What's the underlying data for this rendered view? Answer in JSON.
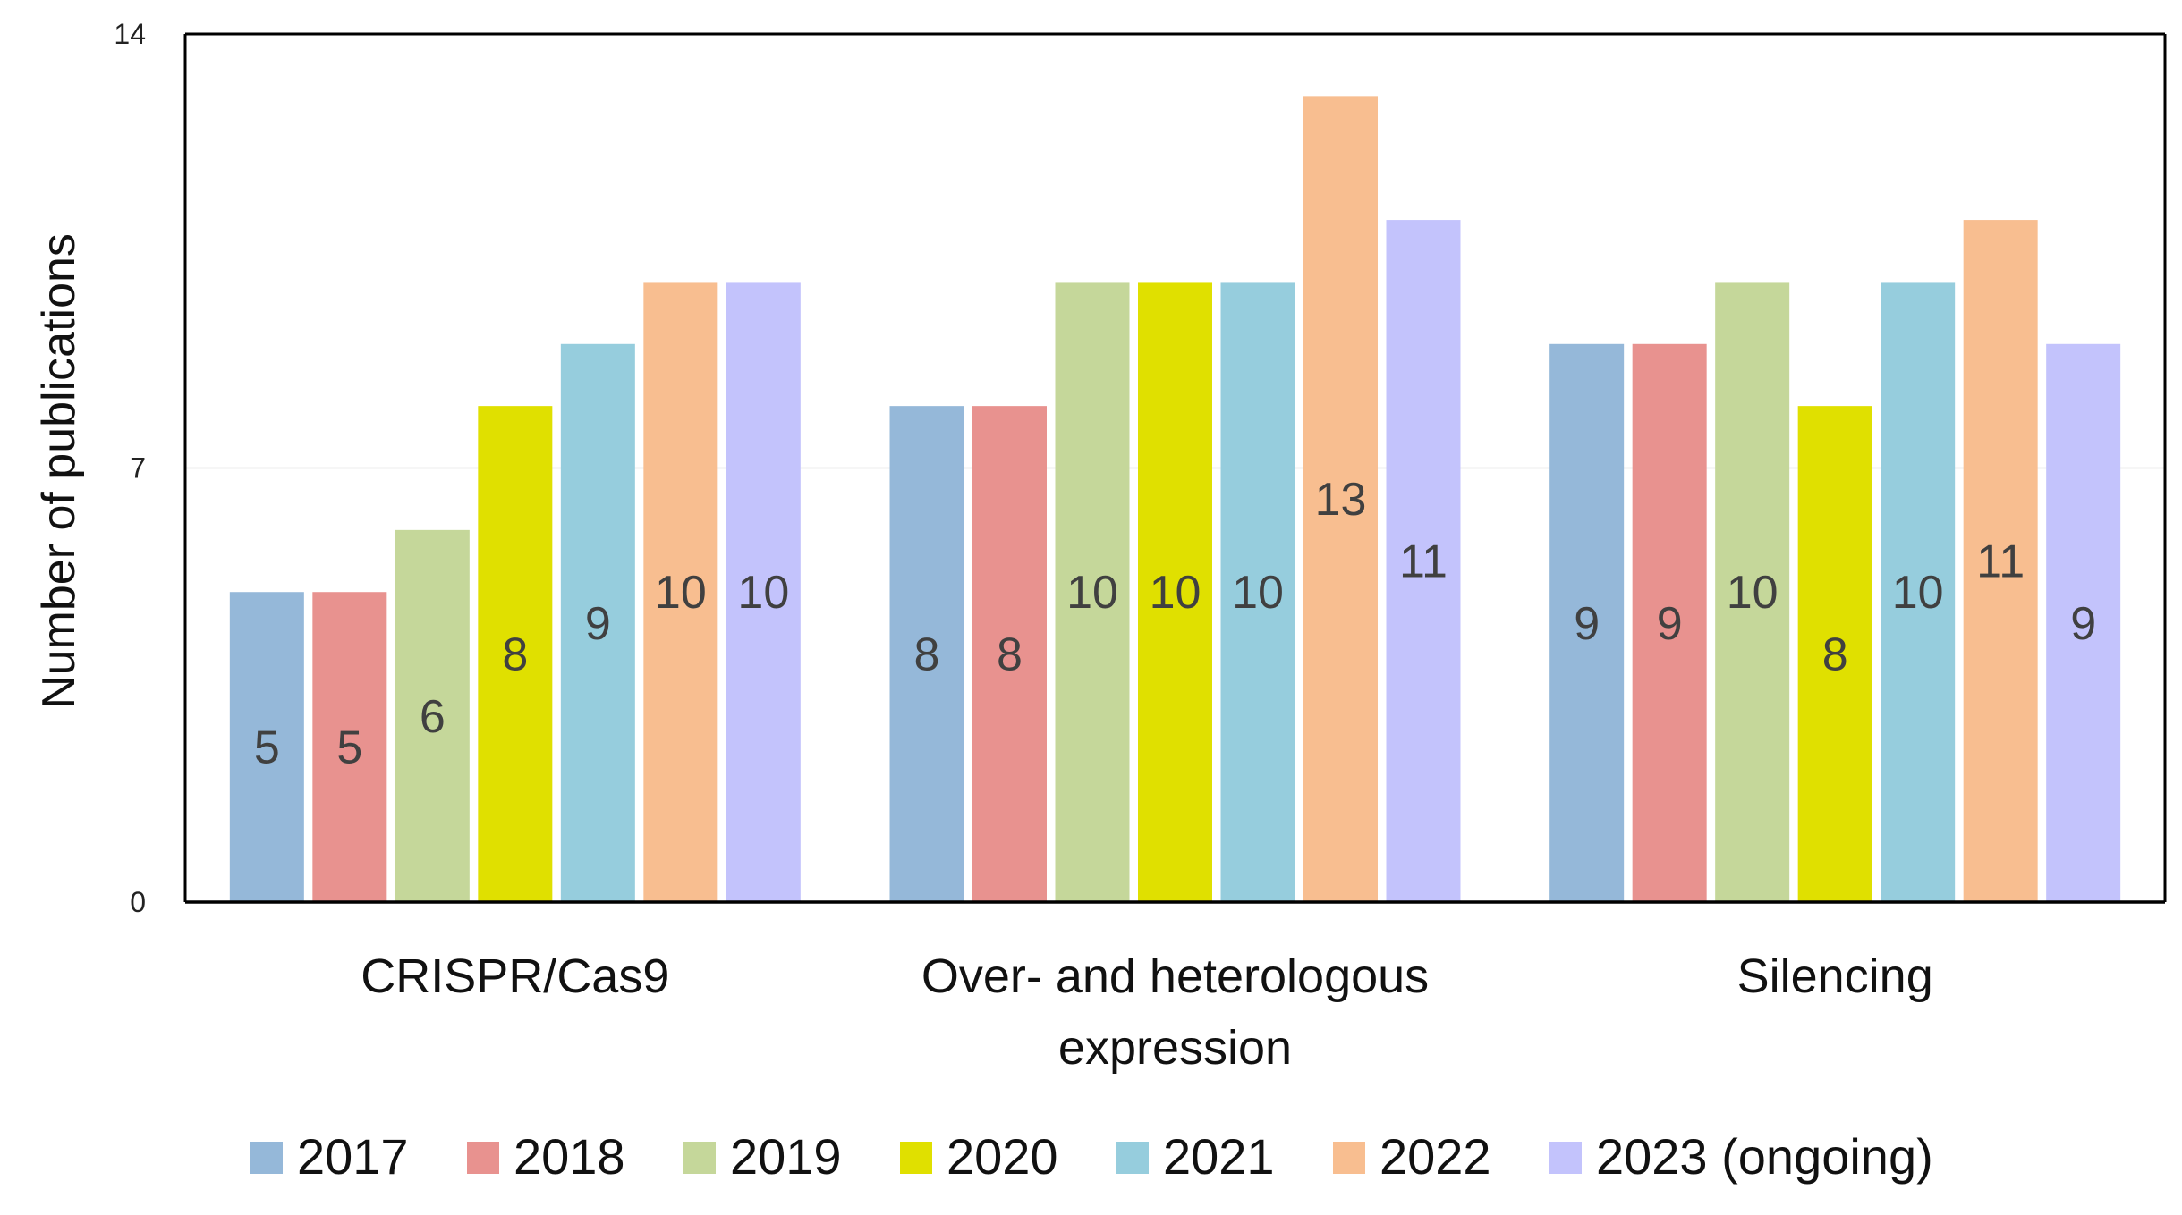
{
  "chart_data": {
    "type": "bar",
    "title": "",
    "xlabel": "",
    "ylabel": "Number of publications",
    "ylim": [
      0,
      14
    ],
    "yticks": [
      "0",
      "7",
      "14"
    ],
    "categories": [
      [
        "CRISPR/Cas9"
      ],
      [
        "Over- and heterologous",
        "expression"
      ],
      [
        "Silencing"
      ]
    ],
    "series": [
      {
        "name": "2017",
        "color": "#95B8D9",
        "values": [
          5,
          8,
          9
        ]
      },
      {
        "name": "2018",
        "color": "#E8928F",
        "values": [
          5,
          8,
          9
        ]
      },
      {
        "name": "2019",
        "color": "#C5D79A",
        "values": [
          6,
          10,
          10
        ]
      },
      {
        "name": "2020",
        "color": "#E0E000",
        "values": [
          8,
          10,
          8
        ]
      },
      {
        "name": "2021",
        "color": "#96CDDD",
        "values": [
          9,
          10,
          10
        ]
      },
      {
        "name": "2022",
        "color": "#F8BE90",
        "values": [
          10,
          13,
          11
        ]
      },
      {
        "name": "2023 (ongoing)",
        "color": "#C3C3FC",
        "values": [
          10,
          11,
          9
        ]
      }
    ],
    "data_label_texts": [
      [
        "5",
        "8",
        "9"
      ],
      [
        "5",
        "8",
        "9"
      ],
      [
        "6",
        "10",
        "10"
      ],
      [
        "8",
        "10",
        "8"
      ],
      [
        "9",
        "10",
        "10"
      ],
      [
        "10",
        "13",
        "11"
      ],
      [
        "10",
        "11",
        "9"
      ]
    ],
    "legend_position": "bottom",
    "grid": true
  }
}
